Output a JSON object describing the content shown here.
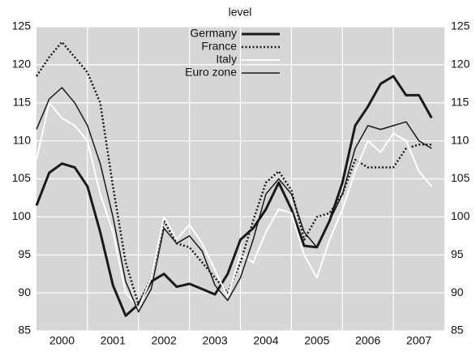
{
  "chart_data": {
    "type": "line",
    "title": "level",
    "x": [
      2000,
      2000.25,
      2000.5,
      2000.75,
      2001,
      2001.25,
      2001.5,
      2001.75,
      2002,
      2002.25,
      2002.5,
      2002.75,
      2003,
      2003.25,
      2003.5,
      2003.75,
      2004,
      2004.25,
      2004.5,
      2004.75,
      2005,
      2005.25,
      2005.5,
      2005.75,
      2006,
      2006.25,
      2006.5,
      2006.75,
      2007,
      2007.25,
      2007.5,
      2007.75
    ],
    "series": [
      {
        "name": "Germany",
        "color": "#1a1a1a",
        "width": 3,
        "line_style": "solid",
        "values": [
          101.5,
          105.8,
          107,
          106.5,
          104,
          98,
          91,
          87,
          88.5,
          91.5,
          92.5,
          90.8,
          91.2,
          90.5,
          89.8,
          92.5,
          97,
          98.5,
          101,
          104.5,
          101,
          96.2,
          96,
          99.5,
          104.5,
          112,
          114.5,
          117.5,
          118.5,
          116,
          116,
          113
        ]
      },
      {
        "name": "France",
        "color": "#1a1a1a",
        "width": 2.5,
        "line_style": "dotted",
        "values": [
          118.5,
          121,
          123,
          121,
          119,
          115,
          104,
          94,
          88.5,
          92,
          99.5,
          96.5,
          96,
          94,
          92,
          90,
          94,
          99.5,
          104.5,
          106,
          103.5,
          97,
          100,
          100.5,
          103,
          107.5,
          106.5,
          106.5,
          106.5,
          109,
          109.5,
          109.5
        ]
      },
      {
        "name": "Italy",
        "color": "#ffffff",
        "width": 2,
        "line_style": "solid",
        "values": [
          107.5,
          115,
          113,
          112,
          110,
          103,
          98,
          90,
          88,
          92,
          100,
          97,
          99,
          96.5,
          93,
          89.5,
          95,
          94,
          98,
          101,
          100.5,
          95,
          92,
          97,
          101,
          106,
          110,
          108.5,
          111,
          110,
          106,
          104
        ]
      },
      {
        "name": "Euro zone",
        "color": "#1a1a1a",
        "width": 1.5,
        "line_style": "solid",
        "values": [
          111.5,
          115.5,
          117,
          115,
          112,
          107,
          100,
          91.5,
          87.5,
          90.5,
          98.5,
          96.5,
          97.5,
          95.5,
          91,
          89,
          92,
          97,
          103,
          105,
          103,
          98,
          96,
          99.5,
          103,
          109,
          112,
          111.5,
          112,
          112.5,
          110,
          109
        ]
      }
    ],
    "xlim": [
      2000,
      2008
    ],
    "xticks": [
      2000,
      2001,
      2002,
      2003,
      2004,
      2005,
      2006,
      2007
    ],
    "ylim": [
      85,
      125
    ],
    "yticks": [
      85,
      90,
      95,
      100,
      105,
      110,
      115,
      120,
      125
    ],
    "grid": true,
    "background": "#d6d6d6",
    "legend": "top"
  }
}
